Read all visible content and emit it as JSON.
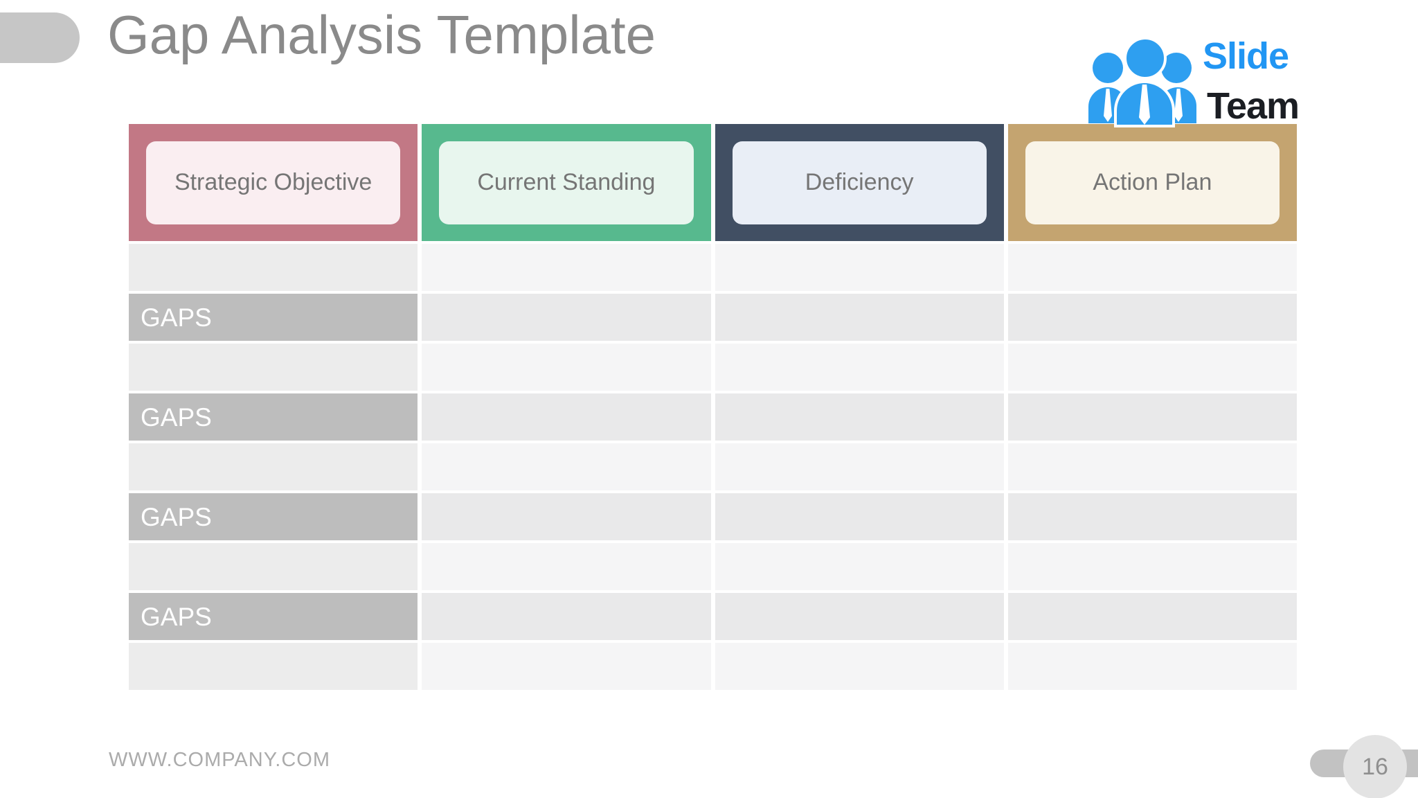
{
  "slide": {
    "title": "Gap Analysis Template",
    "title_color": "#8a8a8a"
  },
  "logo": {
    "word1": "Slide",
    "word2": "Team",
    "blue": "#2196f3",
    "dark": "#1b1e23",
    "icon": "three-people-icon"
  },
  "table": {
    "columns": [
      {
        "id": "strategic-objective",
        "label": "Strategic Objective",
        "header_bg": "#c27885",
        "inner_bg": "#faeef1"
      },
      {
        "id": "current-standing",
        "label": "Current Standing",
        "header_bg": "#57b98e",
        "inner_bg": "#e8f6ee"
      },
      {
        "id": "deficiency",
        "label": "Deficiency",
        "header_bg": "#414f63",
        "inner_bg": "#e9eef6"
      },
      {
        "id": "action-plan",
        "label": "Action Plan",
        "header_bg": "#c4a470",
        "inner_bg": "#f9f4e8"
      }
    ],
    "header_label_color": "#757575",
    "body_colors": {
      "blank_first_col": "#ececec",
      "blank_other_col": "#f5f5f6",
      "gaps_first_col": "#bdbdbd",
      "gaps_other_col": "#e9e9ea",
      "gaps_label_color": "#ffffff"
    },
    "rows": [
      {
        "type": "blank",
        "label": ""
      },
      {
        "type": "gaps",
        "label": "GAPS"
      },
      {
        "type": "blank",
        "label": ""
      },
      {
        "type": "gaps",
        "label": "GAPS"
      },
      {
        "type": "blank",
        "label": ""
      },
      {
        "type": "gaps",
        "label": "GAPS"
      },
      {
        "type": "blank",
        "label": ""
      },
      {
        "type": "gaps",
        "label": "GAPS"
      },
      {
        "type": "blank",
        "label": ""
      }
    ]
  },
  "footer": {
    "url": "WWW.COMPANY.COM",
    "page_number": "16"
  }
}
